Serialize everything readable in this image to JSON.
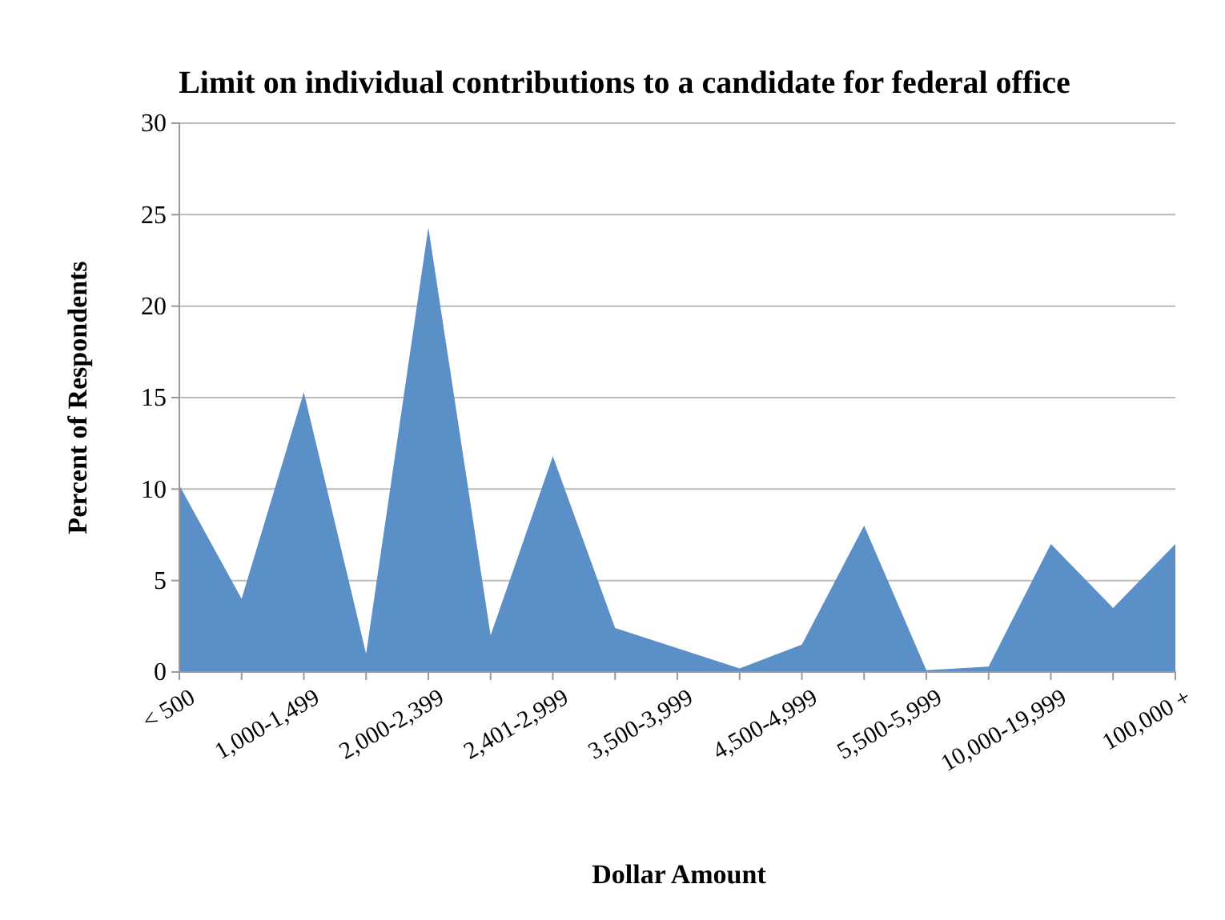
{
  "chart_data": {
    "type": "area",
    "title": "Limit on individual contributions to a candidate for federal office",
    "xlabel": "Dollar Amount",
    "ylabel": "Percent of Respondents",
    "categories": [
      "< 500",
      null,
      "1,000-1,499",
      null,
      "2,000-2,399",
      null,
      "2,401-2,999",
      null,
      "3,500-3,999",
      null,
      "4,500-4,999",
      null,
      "5,500-5,999",
      null,
      "10,000-19,999",
      null,
      "100,000 +"
    ],
    "values": [
      10.2,
      4,
      15.3,
      1,
      24.3,
      2,
      11.8,
      2.4,
      1.3,
      0.2,
      1.5,
      8,
      0.1,
      0.3,
      7,
      3.5,
      7
    ],
    "color": "#5b8fc7",
    "ylim": [
      0,
      30
    ],
    "yticks": [
      0,
      5,
      10,
      15,
      20,
      25,
      30
    ],
    "grid": "y"
  }
}
